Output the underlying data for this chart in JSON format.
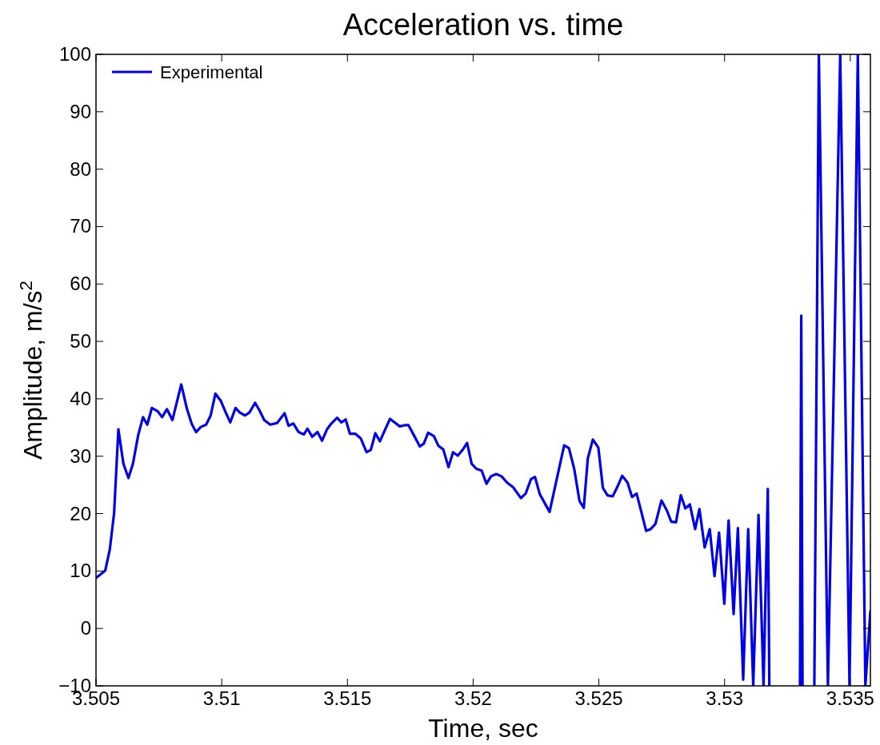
{
  "chart_data": {
    "type": "line",
    "title": "Acceleration vs. time",
    "xlabel": "Time, sec",
    "ylabel": "Amplitude, m/s$^{2}$",
    "xlim": [
      3.505,
      3.5358
    ],
    "ylim": [
      -10,
      100
    ],
    "xticks": [
      3.505,
      3.51,
      3.515,
      3.52,
      3.525,
      3.53,
      3.535
    ],
    "yticks": [
      -10,
      0,
      10,
      20,
      30,
      40,
      50,
      60,
      70,
      80,
      90,
      100
    ],
    "grid": false,
    "legend": "top left",
    "line_style": "solid",
    "marker": "none",
    "series": [
      {
        "name": "Experimental",
        "color": "#0000e6",
        "x": [
          3.505,
          3.50537,
          3.50555,
          3.50572,
          3.50589,
          3.50609,
          3.50629,
          3.50647,
          3.50668,
          3.50687,
          3.50704,
          3.50722,
          3.50746,
          3.50763,
          3.50782,
          3.50804,
          3.50839,
          3.50862,
          3.50881,
          3.50898,
          3.50917,
          3.50938,
          3.50956,
          3.50975,
          3.50997,
          3.51015,
          3.51034,
          3.51055,
          3.51072,
          3.51093,
          3.5111,
          3.51133,
          3.5115,
          3.51169,
          3.51193,
          3.51221,
          3.5125,
          3.51266,
          3.51285,
          3.51306,
          3.51327,
          3.51341,
          3.5136,
          3.51381,
          3.51399,
          3.51419,
          3.51436,
          3.51459,
          3.51476,
          3.51493,
          3.5151,
          3.51532,
          3.51553,
          3.51576,
          3.51593,
          3.51611,
          3.51629,
          3.51669,
          3.5169,
          3.51708,
          3.51728,
          3.51743,
          3.51765,
          3.51788,
          3.51804,
          3.51821,
          3.51844,
          3.51862,
          3.51881,
          3.51902,
          3.5192,
          3.51939,
          3.51958,
          3.51976,
          3.51994,
          3.52013,
          3.52034,
          3.52053,
          3.52071,
          3.52092,
          3.52113,
          3.52135,
          3.52159,
          3.5219,
          3.52209,
          3.5223,
          3.52246,
          3.52265,
          3.52304,
          3.52362,
          3.52381,
          3.52402,
          3.52423,
          3.5244,
          3.52456,
          3.52476,
          3.52498,
          3.52516,
          3.52534,
          3.52555,
          3.52574,
          3.52593,
          3.52614,
          3.52632,
          3.5265,
          3.52669,
          3.52688,
          3.52706,
          3.52725,
          3.52749,
          3.5277,
          3.52788,
          3.52807,
          3.52826,
          3.52844,
          3.52862,
          3.52883,
          3.529,
          3.52921,
          3.52941,
          3.5296,
          3.52978,
          3.52999,
          3.53016,
          3.53036,
          3.53053,
          3.53074,
          3.53094,
          3.53114,
          3.53135,
          3.53155,
          3.53172,
          3.53178,
          3.5324,
          3.533,
          3.53305,
          3.5331,
          3.5333,
          3.53357,
          3.53375,
          3.53411,
          3.5346,
          3.53497,
          3.5353,
          3.5356,
          3.5358
        ],
        "values": [
          8.8,
          10.1,
          13.8,
          20.1,
          34.7,
          28.7,
          26.2,
          28.7,
          33.7,
          36.8,
          35.5,
          38.4,
          37.8,
          36.8,
          38.2,
          36.3,
          42.5,
          38.2,
          35.6,
          34.2,
          35.1,
          35.5,
          37.1,
          40.9,
          39.6,
          37.7,
          35.9,
          38.4,
          37.6,
          37.1,
          37.6,
          39.3,
          38,
          36.3,
          35.5,
          35.8,
          37.5,
          35.3,
          35.7,
          34.2,
          33.8,
          34.8,
          33.4,
          34.2,
          32.7,
          34.7,
          35.7,
          36.7,
          35.9,
          36.4,
          33.9,
          33.9,
          33.1,
          30.7,
          31.1,
          34,
          32.6,
          36.5,
          35.8,
          35.2,
          35.4,
          35.4,
          33.6,
          31.7,
          32.2,
          34.1,
          33.5,
          31.8,
          31.2,
          28.1,
          30.7,
          30.1,
          31.1,
          32.3,
          28.7,
          27.8,
          27.5,
          25.2,
          26.5,
          26.9,
          26.5,
          25.4,
          24.6,
          22.7,
          23.5,
          26,
          26.4,
          23.4,
          20.3,
          31.9,
          31.4,
          27.8,
          22.2,
          21,
          29.6,
          32.9,
          31.5,
          24.5,
          23.2,
          23,
          24.7,
          26.6,
          25.4,
          22.9,
          23.5,
          20.3,
          17,
          17.3,
          18.2,
          22.3,
          20.6,
          18.6,
          18.5,
          23.2,
          20.9,
          21.6,
          17.3,
          20.8,
          14.1,
          17.3,
          9.1,
          16.7,
          4.3,
          18.8,
          2.5,
          17.5,
          -8.9,
          17.3,
          -10,
          19.8,
          -10,
          24.3,
          -10,
          null,
          -10,
          54.5,
          -10,
          null,
          -10,
          100,
          -10,
          100,
          -10,
          100,
          -10,
          3
        ]
      }
    ]
  }
}
